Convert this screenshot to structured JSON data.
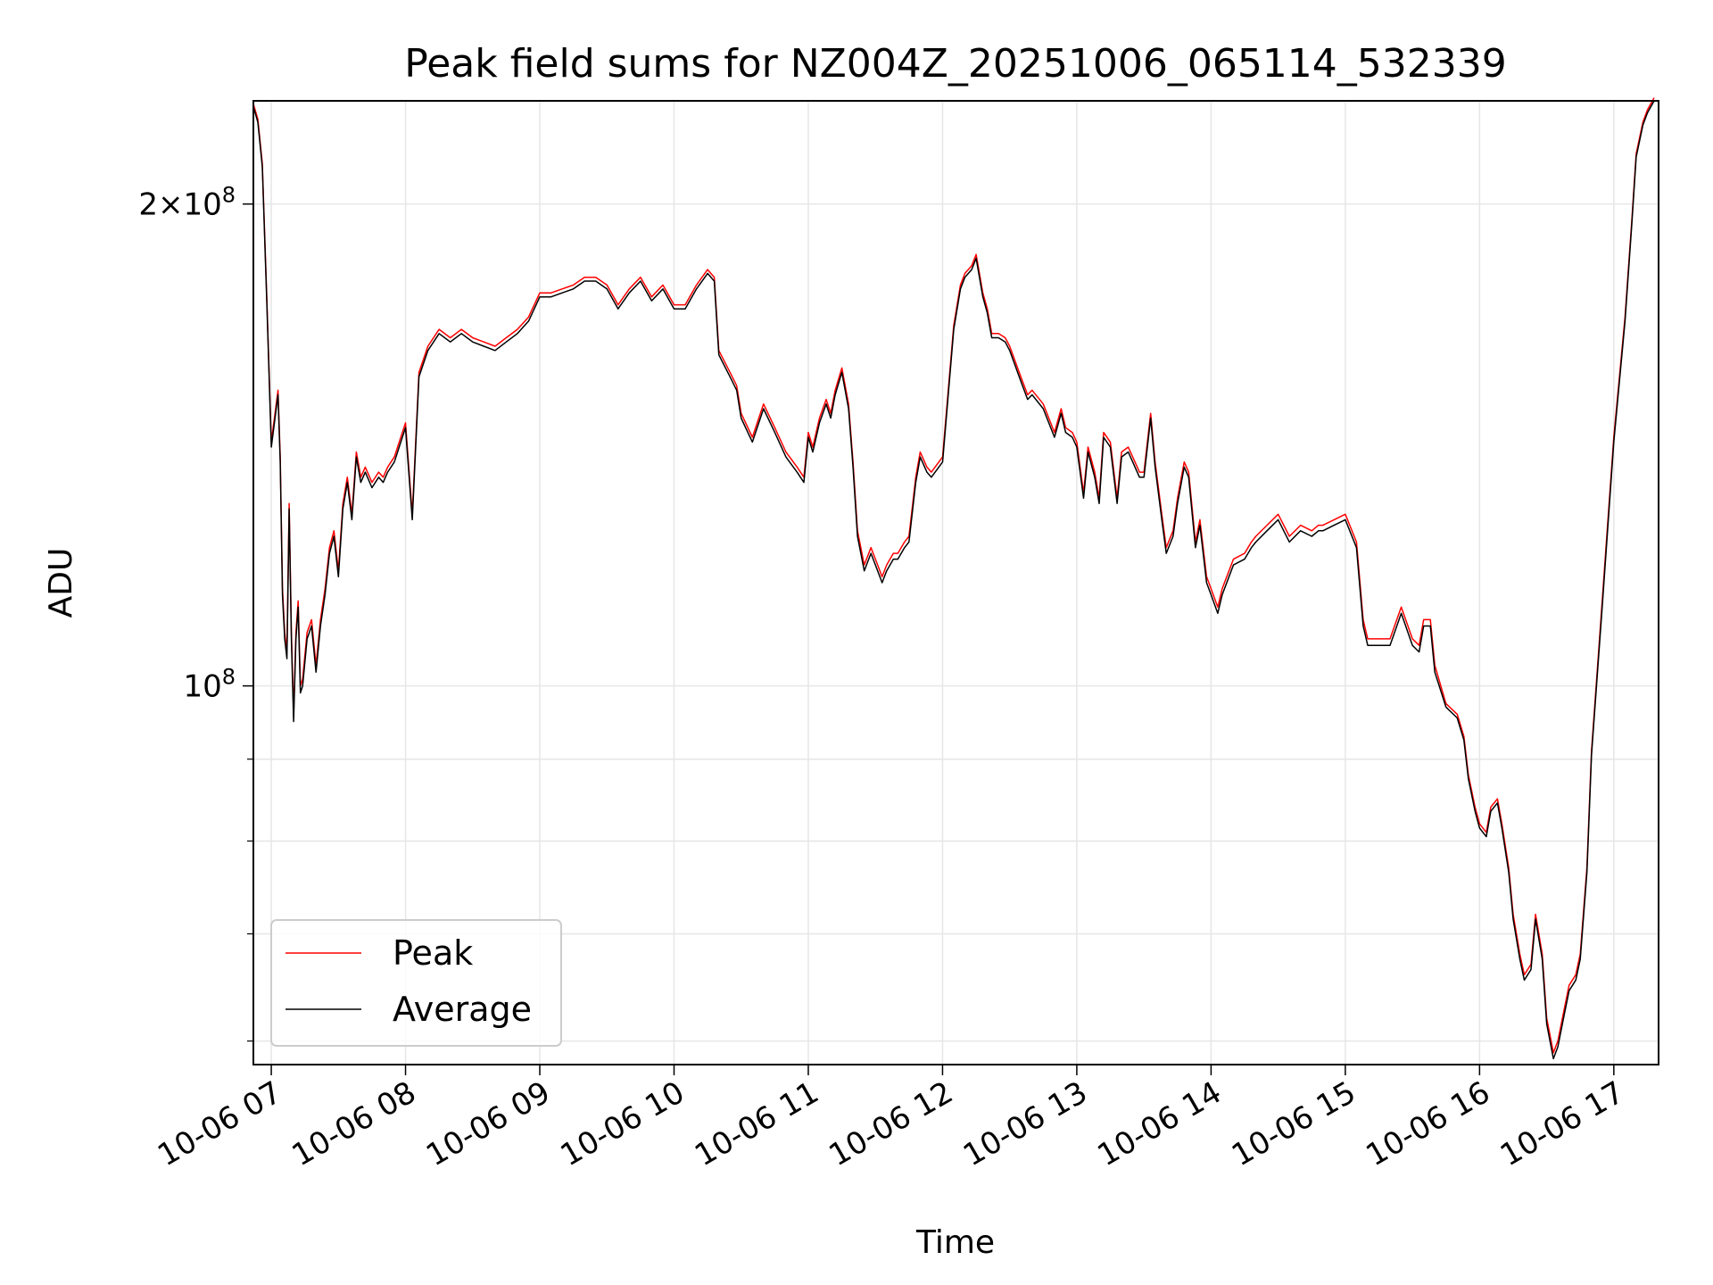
{
  "chart_data": {
    "type": "line",
    "title": "Peak field sums for NZ004Z_20251006_065114_532339",
    "xlabel": "Time",
    "ylabel": "ADU",
    "yscale": "log",
    "grid": true,
    "legend_position": "lower-left",
    "xlim": [
      "2025-10-06 06:52",
      "2025-10-06 17:20"
    ],
    "ylim": [
      58000000,
      232000000
    ],
    "x_ticks": [
      "10-06 07",
      "10-06 08",
      "10-06 09",
      "10-06 10",
      "10-06 11",
      "10-06 12",
      "10-06 13",
      "10-06 14",
      "10-06 15",
      "10-06 16",
      "10-06 17"
    ],
    "y_tick_labels": [
      {
        "value": 200000000,
        "base": "2×10",
        "exp": "8"
      },
      {
        "value": 100000000,
        "base": "10",
        "exp": "8"
      }
    ],
    "y_minor_ticks": [
      60000000,
      70000000,
      80000000,
      90000000
    ],
    "x_times": [
      "06:52",
      "06:54",
      "06:56",
      "06:58",
      "07:00",
      "07:03",
      "07:04",
      "07:05",
      "07:06",
      "07:07",
      "07:08",
      "07:09",
      "07:10",
      "07:11",
      "07:12",
      "07:13",
      "07:14",
      "07:16",
      "07:18",
      "07:20",
      "07:22",
      "07:24",
      "07:26",
      "07:28",
      "07:30",
      "07:32",
      "07:34",
      "07:36",
      "07:38",
      "07:40",
      "07:42",
      "07:45",
      "07:48",
      "07:50",
      "07:52",
      "07:55",
      "08:00",
      "08:03",
      "08:06",
      "08:10",
      "08:15",
      "08:20",
      "08:25",
      "08:30",
      "08:35",
      "08:40",
      "08:45",
      "08:50",
      "08:55",
      "09:00",
      "09:05",
      "09:10",
      "09:15",
      "09:20",
      "09:25",
      "09:30",
      "09:35",
      "09:40",
      "09:45",
      "09:50",
      "09:55",
      "10:00",
      "10:05",
      "10:10",
      "10:15",
      "10:18",
      "10:20",
      "10:25",
      "10:28",
      "10:30",
      "10:35",
      "10:40",
      "10:45",
      "10:50",
      "10:55",
      "10:58",
      "11:00",
      "11:02",
      "11:05",
      "11:08",
      "11:10",
      "11:12",
      "11:15",
      "11:18",
      "11:20",
      "11:22",
      "11:25",
      "11:28",
      "11:30",
      "11:33",
      "11:35",
      "11:38",
      "11:40",
      "11:43",
      "11:45",
      "11:48",
      "11:50",
      "11:53",
      "11:55",
      "12:00",
      "12:05",
      "12:08",
      "12:10",
      "12:13",
      "12:15",
      "12:18",
      "12:20",
      "12:22",
      "12:25",
      "12:28",
      "12:30",
      "12:35",
      "12:38",
      "12:40",
      "12:45",
      "12:50",
      "12:53",
      "12:55",
      "12:58",
      "13:00",
      "13:03",
      "13:05",
      "13:08",
      "13:10",
      "13:12",
      "13:15",
      "13:18",
      "13:20",
      "13:23",
      "13:25",
      "13:28",
      "13:30",
      "13:33",
      "13:35",
      "13:38",
      "13:40",
      "13:43",
      "13:45",
      "13:48",
      "13:50",
      "13:53",
      "13:55",
      "13:58",
      "14:00",
      "14:03",
      "14:05",
      "14:08",
      "14:10",
      "14:15",
      "14:18",
      "14:20",
      "14:25",
      "14:30",
      "14:35",
      "14:40",
      "14:45",
      "14:48",
      "14:50",
      "14:55",
      "15:00",
      "15:05",
      "15:08",
      "15:10",
      "15:15",
      "15:20",
      "15:25",
      "15:30",
      "15:33",
      "15:35",
      "15:38",
      "15:40",
      "15:45",
      "15:50",
      "15:53",
      "15:55",
      "15:58",
      "16:00",
      "16:03",
      "16:05",
      "16:08",
      "16:10",
      "16:13",
      "16:15",
      "16:18",
      "16:20",
      "16:23",
      "16:25",
      "16:28",
      "16:30",
      "16:33",
      "16:35",
      "16:38",
      "16:40",
      "16:43",
      "16:45",
      "16:48",
      "16:50",
      "16:55",
      "17:00",
      "17:05",
      "17:08",
      "17:10",
      "17:13",
      "17:15",
      "17:18",
      "17:20"
    ],
    "series": [
      {
        "name": "Peak",
        "color": "#ff0000",
        "values": [
          231000000,
          226000000,
          212000000,
          175000000,
          142000000,
          153000000,
          139000000,
          115000000,
          108000000,
          105000000,
          130000000,
          108000000,
          96000000,
          108000000,
          113000000,
          100000000,
          101000000,
          108000000,
          110000000,
          103000000,
          110000000,
          115000000,
          122000000,
          125000000,
          118000000,
          130000000,
          135000000,
          128000000,
          140000000,
          135000000,
          137000000,
          134000000,
          136000000,
          135000000,
          137000000,
          139000000,
          146000000,
          128000000,
          157000000,
          163000000,
          167000000,
          165000000,
          167000000,
          165000000,
          164000000,
          163000000,
          165000000,
          167000000,
          170000000,
          176000000,
          176000000,
          177000000,
          178000000,
          180000000,
          180000000,
          178000000,
          173000000,
          177000000,
          180000000,
          175000000,
          178000000,
          173000000,
          173000000,
          178000000,
          182000000,
          180000000,
          162000000,
          157000000,
          154000000,
          148000000,
          143000000,
          150000000,
          145000000,
          140000000,
          137000000,
          135000000,
          144000000,
          141000000,
          147000000,
          151000000,
          148000000,
          153000000,
          158000000,
          150000000,
          138000000,
          125000000,
          119000000,
          122000000,
          120000000,
          117000000,
          119000000,
          121000000,
          121000000,
          123000000,
          124000000,
          135000000,
          140000000,
          137000000,
          136000000,
          139000000,
          168000000,
          178000000,
          181000000,
          183000000,
          186000000,
          176000000,
          172000000,
          166000000,
          166000000,
          165000000,
          163000000,
          156000000,
          152000000,
          153000000,
          150000000,
          144000000,
          149000000,
          145000000,
          144000000,
          142000000,
          132000000,
          141000000,
          136000000,
          131000000,
          144000000,
          142000000,
          131000000,
          140000000,
          141000000,
          139000000,
          136000000,
          136000000,
          148000000,
          138000000,
          128000000,
          122000000,
          125000000,
          131000000,
          138000000,
          136000000,
          123000000,
          127000000,
          117000000,
          115000000,
          112000000,
          115000000,
          118000000,
          120000000,
          121000000,
          123000000,
          124000000,
          126000000,
          128000000,
          124000000,
          126000000,
          125000000,
          126000000,
          126000000,
          127000000,
          128000000,
          123000000,
          110000000,
          107000000,
          107000000,
          107000000,
          112000000,
          107000000,
          106000000,
          110000000,
          110000000,
          103000000,
          97500000,
          96000000,
          93000000,
          88000000,
          84000000,
          82000000,
          81000000,
          84000000,
          85000000,
          82000000,
          77000000,
          72000000,
          68000000,
          66000000,
          67000000,
          72000000,
          68000000,
          62000000,
          59000000,
          60000000,
          63000000,
          65000000,
          66000000,
          68000000,
          77000000,
          91000000,
          114000000,
          143000000,
          170000000,
          195000000,
          215000000,
          225000000,
          229000000,
          233000000
        ]
      },
      {
        "name": "Average",
        "color": "#000000",
        "values": [
          230000000,
          225000000,
          211000000,
          174000000,
          141000000,
          152000000,
          138000000,
          114000000,
          107000000,
          104000000,
          129000000,
          107000000,
          95000000,
          107000000,
          112000000,
          99000000,
          100000000,
          107000000,
          109000000,
          102000000,
          109000000,
          114000000,
          121000000,
          124000000,
          117000000,
          129000000,
          134000000,
          127000000,
          139000000,
          134000000,
          136000000,
          133000000,
          135000000,
          134000000,
          136000000,
          138000000,
          145000000,
          127000000,
          156000000,
          162000000,
          166000000,
          164000000,
          166000000,
          164000000,
          163000000,
          162000000,
          164000000,
          166000000,
          169000000,
          175000000,
          175000000,
          176000000,
          177000000,
          179000000,
          179000000,
          177000000,
          172000000,
          176000000,
          179000000,
          174000000,
          177000000,
          172000000,
          172000000,
          177000000,
          181000000,
          179000000,
          161000000,
          156000000,
          153000000,
          147000000,
          142000000,
          149000000,
          144000000,
          139000000,
          136000000,
          134000000,
          143000000,
          140000000,
          146000000,
          150000000,
          147000000,
          152000000,
          157000000,
          149000000,
          137000000,
          124000000,
          118000000,
          121000000,
          119000000,
          116000000,
          118000000,
          120000000,
          120000000,
          122000000,
          123000000,
          134000000,
          139000000,
          136000000,
          135000000,
          138000000,
          167000000,
          177000000,
          180000000,
          182000000,
          185000000,
          175000000,
          171000000,
          165000000,
          165000000,
          164000000,
          162000000,
          155000000,
          151000000,
          152000000,
          149000000,
          143000000,
          148000000,
          144000000,
          143000000,
          141000000,
          131000000,
          140000000,
          135000000,
          130000000,
          143000000,
          141000000,
          130000000,
          139000000,
          140000000,
          138000000,
          135000000,
          135000000,
          147000000,
          137000000,
          127000000,
          121000000,
          124000000,
          130000000,
          137000000,
          135000000,
          122000000,
          126000000,
          116000000,
          114000000,
          111000000,
          114000000,
          117000000,
          119000000,
          120000000,
          122000000,
          123000000,
          125000000,
          127000000,
          123000000,
          125000000,
          124000000,
          125000000,
          125000000,
          126000000,
          127000000,
          122000000,
          109000000,
          106000000,
          106000000,
          106000000,
          111000000,
          106000000,
          105000000,
          109000000,
          109000000,
          102000000,
          97000000,
          95500000,
          92500000,
          87500000,
          83500000,
          81500000,
          80500000,
          83500000,
          84500000,
          81500000,
          76500000,
          71500000,
          67500000,
          65500000,
          66500000,
          71500000,
          67500000,
          61500000,
          58500000,
          59500000,
          62500000,
          64500000,
          65500000,
          67500000,
          76500000,
          90500000,
          113000000,
          142000000,
          169000000,
          194000000,
          214000000,
          224000000,
          228000000,
          232000000
        ]
      }
    ]
  }
}
